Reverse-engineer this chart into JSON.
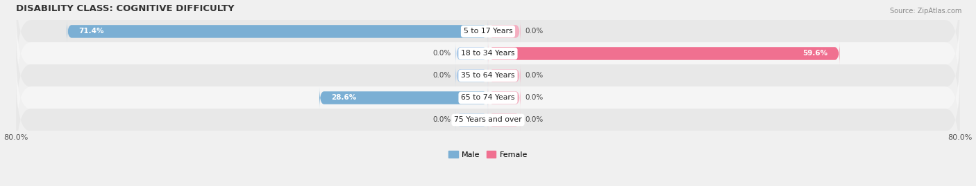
{
  "title": "DISABILITY CLASS: COGNITIVE DIFFICULTY",
  "source": "Source: ZipAtlas.com",
  "categories": [
    "5 to 17 Years",
    "18 to 34 Years",
    "35 to 64 Years",
    "65 to 74 Years",
    "75 Years and over"
  ],
  "male_values": [
    71.4,
    0.0,
    0.0,
    28.6,
    0.0
  ],
  "female_values": [
    0.0,
    59.6,
    0.0,
    0.0,
    0.0
  ],
  "male_color": "#7bafd4",
  "female_color": "#f07090",
  "male_stub_color": "#aac9e8",
  "female_stub_color": "#f4aec0",
  "outside_label_color": "#555555",
  "inside_label_color": "#ffffff",
  "value_label_color": "#444444",
  "bar_height": 0.58,
  "stub_value": 5.5,
  "xlim": 80.0,
  "x_left_label": "80.0%",
  "x_right_label": "80.0%",
  "background_color": "#f0f0f0",
  "row_colors": [
    "#e8e8e8",
    "#f5f5f5"
  ],
  "pill_color": "#ffffff",
  "title_fontsize": 9.5,
  "label_fontsize": 7.5,
  "category_fontsize": 7.8,
  "axis_fontsize": 8.0,
  "source_fontsize": 7.0
}
